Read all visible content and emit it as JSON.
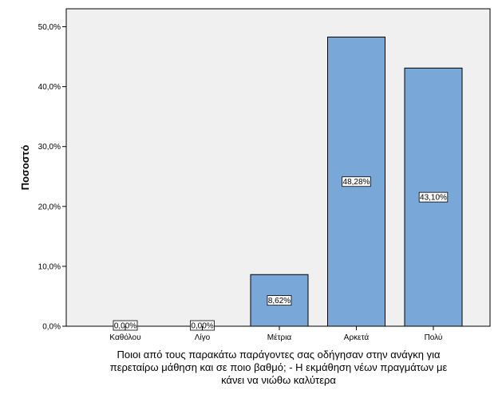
{
  "chart_data": {
    "type": "bar",
    "title": "",
    "ylabel": "Ποσοστό",
    "xlabel_lines": [
      "Ποιοι από τους παρακάτω παράγοντες σας οδήγησαν στην ανάγκη για",
      "περεταίρω μάθηση και σε ποιο βαθμό; - Η εκμάθηση νέων πραγμάτων με",
      "κάνει να νιώθω καλύτερα"
    ],
    "categories": [
      "Καθόλου",
      "Λίγο",
      "Μέτρια",
      "Αρκετά",
      "Πολύ"
    ],
    "values": [
      0.0,
      0.0,
      8.62,
      48.28,
      43.1
    ],
    "data_labels": [
      "0,00%",
      "0,00%",
      "8,62%",
      "48,28%",
      "43,10%"
    ],
    "yticks": [
      0,
      10,
      20,
      30,
      40,
      50
    ],
    "ytick_labels": [
      "0,0%",
      "10,0%",
      "20,0%",
      "30,0%",
      "40,0%",
      "50,0%"
    ],
    "ylim": [
      0,
      53
    ],
    "grid": false,
    "legend": "none",
    "colors": {
      "bar": "#79a8d8",
      "bar_edge": "#000000",
      "plot_bg": "#f0f0f0",
      "label_box": "#ffffff"
    }
  }
}
